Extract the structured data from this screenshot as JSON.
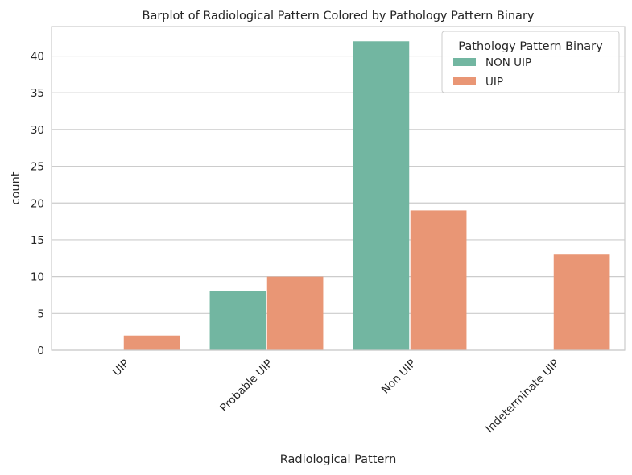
{
  "chart_data": {
    "type": "bar",
    "title": "Barplot of Radiological Pattern Colored by Pathology Pattern Binary",
    "xlabel": "Radiological Pattern",
    "ylabel": "count",
    "categories": [
      "UIP",
      "Probable UIP",
      "Non UIP",
      "Indeterminate UIP"
    ],
    "series": [
      {
        "name": "NON UIP",
        "color": "#72b6a1",
        "values": [
          0,
          8,
          42,
          0
        ]
      },
      {
        "name": "UIP",
        "color": "#e99675",
        "values": [
          2,
          10,
          19,
          13
        ]
      }
    ],
    "ylim": [
      0,
      44
    ],
    "yticks": [
      0,
      5,
      10,
      15,
      20,
      25,
      30,
      35,
      40
    ],
    "grid": "horizontal",
    "legend": {
      "title": "Pathology Pattern Binary",
      "placement": "top-right"
    },
    "colors": {
      "grid": "#cccccc",
      "axes": "#cccccc",
      "text": "#262626"
    }
  }
}
